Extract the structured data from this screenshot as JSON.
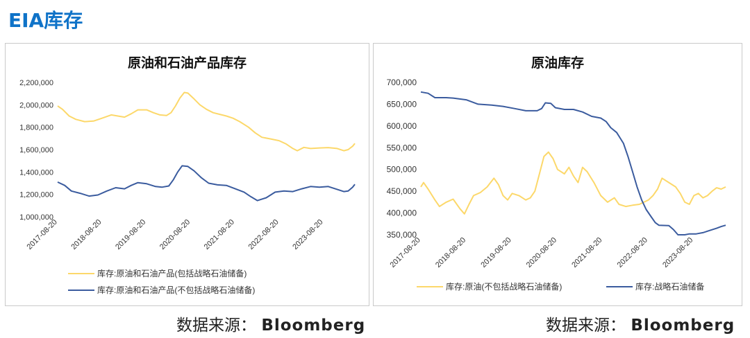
{
  "page": {
    "title": "EIA库存"
  },
  "source": {
    "label": "数据来源：",
    "name": "Bloomberg"
  },
  "chart_data": [
    {
      "type": "line",
      "title": "原油和石油产品库存",
      "ylim": [
        1000000,
        2200000
      ],
      "y_ticks": [
        1000000,
        1200000,
        1400000,
        1600000,
        1800000,
        2000000,
        2200000
      ],
      "y_tick_labels": [
        "1,000,000",
        "1,200,000",
        "1,400,000",
        "1,600,000",
        "1,800,000",
        "2,000,000",
        "2,200,000"
      ],
      "x_ticks": [
        "2017-08-20",
        "2018-08-20",
        "2019-08-20",
        "2020-08-20",
        "2021-08-20",
        "2022-08-20",
        "2023-08-20"
      ],
      "xlim": [
        2017.64,
        2024.35
      ],
      "grid": false,
      "legend_position": "bottom",
      "series": [
        {
          "name": "库存:原油和石油产品(包括战略石油储备)",
          "color": "#FCD86A",
          "points": [
            [
              2017.64,
              1990000
            ],
            [
              2017.75,
              1960000
            ],
            [
              2017.9,
              1900000
            ],
            [
              2018.05,
              1870000
            ],
            [
              2018.25,
              1850000
            ],
            [
              2018.45,
              1855000
            ],
            [
              2018.64,
              1880000
            ],
            [
              2018.85,
              1910000
            ],
            [
              2019.0,
              1900000
            ],
            [
              2019.15,
              1890000
            ],
            [
              2019.3,
              1920000
            ],
            [
              2019.45,
              1955000
            ],
            [
              2019.65,
              1955000
            ],
            [
              2019.8,
              1930000
            ],
            [
              2019.95,
              1910000
            ],
            [
              2020.1,
              1905000
            ],
            [
              2020.2,
              1930000
            ],
            [
              2020.3,
              1990000
            ],
            [
              2020.4,
              2060000
            ],
            [
              2020.5,
              2110000
            ],
            [
              2020.58,
              2105000
            ],
            [
              2020.7,
              2060000
            ],
            [
              2020.85,
              2000000
            ],
            [
              2021.0,
              1960000
            ],
            [
              2021.15,
              1930000
            ],
            [
              2021.3,
              1915000
            ],
            [
              2021.45,
              1900000
            ],
            [
              2021.6,
              1880000
            ],
            [
              2021.75,
              1850000
            ],
            [
              2021.95,
              1800000
            ],
            [
              2022.1,
              1750000
            ],
            [
              2022.25,
              1710000
            ],
            [
              2022.45,
              1695000
            ],
            [
              2022.64,
              1680000
            ],
            [
              2022.8,
              1650000
            ],
            [
              2022.95,
              1610000
            ],
            [
              2023.05,
              1590000
            ],
            [
              2023.2,
              1620000
            ],
            [
              2023.35,
              1610000
            ],
            [
              2023.55,
              1615000
            ],
            [
              2023.75,
              1618000
            ],
            [
              2023.95,
              1610000
            ],
            [
              2024.1,
              1590000
            ],
            [
              2024.2,
              1600000
            ],
            [
              2024.3,
              1630000
            ],
            [
              2024.35,
              1655000
            ]
          ]
        },
        {
          "name": "库存:原油和石油产品(不包括战略石油储备)",
          "color": "#3A5B9E",
          "points": [
            [
              2017.64,
              1310000
            ],
            [
              2017.8,
              1280000
            ],
            [
              2017.95,
              1230000
            ],
            [
              2018.15,
              1210000
            ],
            [
              2018.35,
              1185000
            ],
            [
              2018.55,
              1195000
            ],
            [
              2018.75,
              1230000
            ],
            [
              2018.95,
              1260000
            ],
            [
              2019.15,
              1250000
            ],
            [
              2019.3,
              1280000
            ],
            [
              2019.45,
              1305000
            ],
            [
              2019.65,
              1295000
            ],
            [
              2019.85,
              1270000
            ],
            [
              2020.0,
              1265000
            ],
            [
              2020.15,
              1275000
            ],
            [
              2020.25,
              1330000
            ],
            [
              2020.35,
              1400000
            ],
            [
              2020.45,
              1455000
            ],
            [
              2020.58,
              1450000
            ],
            [
              2020.72,
              1410000
            ],
            [
              2020.88,
              1350000
            ],
            [
              2021.05,
              1300000
            ],
            [
              2021.25,
              1285000
            ],
            [
              2021.45,
              1280000
            ],
            [
              2021.65,
              1250000
            ],
            [
              2021.85,
              1220000
            ],
            [
              2022.0,
              1180000
            ],
            [
              2022.15,
              1145000
            ],
            [
              2022.35,
              1170000
            ],
            [
              2022.55,
              1220000
            ],
            [
              2022.75,
              1230000
            ],
            [
              2022.95,
              1225000
            ],
            [
              2023.15,
              1250000
            ],
            [
              2023.35,
              1270000
            ],
            [
              2023.55,
              1265000
            ],
            [
              2023.75,
              1270000
            ],
            [
              2023.95,
              1245000
            ],
            [
              2024.1,
              1225000
            ],
            [
              2024.2,
              1230000
            ],
            [
              2024.3,
              1265000
            ],
            [
              2024.35,
              1290000
            ]
          ]
        }
      ]
    },
    {
      "type": "line",
      "title": "原油库存",
      "ylim": [
        350000,
        700000
      ],
      "y_ticks": [
        350000,
        400000,
        450000,
        500000,
        550000,
        600000,
        650000,
        700000
      ],
      "y_tick_labels": [
        "350,000",
        "400,000",
        "450,000",
        "500,000",
        "550,000",
        "600,000",
        "650,000",
        "700,000"
      ],
      "x_ticks": [
        "2017-08-20",
        "2018-08-20",
        "2019-08-20",
        "2020-08-20",
        "2021-08-20",
        "2022-08-20",
        "2023-08-20"
      ],
      "xlim": [
        2017.64,
        2024.35
      ],
      "grid": false,
      "legend_position": "bottom",
      "series": [
        {
          "name": "库存:原油(不包括战略石油储备)",
          "color": "#FCD86A",
          "points": [
            [
              2017.64,
              460000
            ],
            [
              2017.7,
              470000
            ],
            [
              2017.8,
              455000
            ],
            [
              2017.95,
              430000
            ],
            [
              2018.05,
              415000
            ],
            [
              2018.2,
              425000
            ],
            [
              2018.35,
              432000
            ],
            [
              2018.5,
              410000
            ],
            [
              2018.6,
              398000
            ],
            [
              2018.7,
              420000
            ],
            [
              2018.8,
              440000
            ],
            [
              2018.95,
              447000
            ],
            [
              2019.1,
              460000
            ],
            [
              2019.25,
              480000
            ],
            [
              2019.35,
              465000
            ],
            [
              2019.45,
              440000
            ],
            [
              2019.55,
              430000
            ],
            [
              2019.65,
              445000
            ],
            [
              2019.8,
              440000
            ],
            [
              2019.95,
              430000
            ],
            [
              2020.05,
              435000
            ],
            [
              2020.15,
              450000
            ],
            [
              2020.25,
              490000
            ],
            [
              2020.35,
              530000
            ],
            [
              2020.45,
              540000
            ],
            [
              2020.55,
              525000
            ],
            [
              2020.65,
              500000
            ],
            [
              2020.8,
              490000
            ],
            [
              2020.9,
              505000
            ],
            [
              2021.0,
              485000
            ],
            [
              2021.1,
              470000
            ],
            [
              2021.2,
              505000
            ],
            [
              2021.3,
              495000
            ],
            [
              2021.45,
              470000
            ],
            [
              2021.6,
              440000
            ],
            [
              2021.75,
              425000
            ],
            [
              2021.9,
              435000
            ],
            [
              2022.0,
              420000
            ],
            [
              2022.15,
              415000
            ],
            [
              2022.3,
              418000
            ],
            [
              2022.45,
              420000
            ],
            [
              2022.55,
              425000
            ],
            [
              2022.65,
              430000
            ],
            [
              2022.75,
              440000
            ],
            [
              2022.85,
              455000
            ],
            [
              2022.95,
              480000
            ],
            [
              2023.1,
              470000
            ],
            [
              2023.25,
              460000
            ],
            [
              2023.35,
              445000
            ],
            [
              2023.45,
              425000
            ],
            [
              2023.55,
              420000
            ],
            [
              2023.65,
              440000
            ],
            [
              2023.75,
              445000
            ],
            [
              2023.85,
              435000
            ],
            [
              2023.95,
              440000
            ],
            [
              2024.05,
              450000
            ],
            [
              2024.15,
              458000
            ],
            [
              2024.25,
              455000
            ],
            [
              2024.35,
              460000
            ]
          ]
        },
        {
          "name": "库存:战略石油储备",
          "color": "#3A5B9E",
          "points": [
            [
              2017.64,
              678000
            ],
            [
              2017.8,
              675000
            ],
            [
              2017.95,
              665000
            ],
            [
              2018.2,
              665000
            ],
            [
              2018.35,
              664000
            ],
            [
              2018.64,
              660000
            ],
            [
              2018.9,
              650000
            ],
            [
              2019.2,
              648000
            ],
            [
              2019.45,
              645000
            ],
            [
              2019.7,
              640000
            ],
            [
              2019.95,
              635000
            ],
            [
              2020.2,
              635000
            ],
            [
              2020.3,
              640000
            ],
            [
              2020.38,
              653000
            ],
            [
              2020.5,
              652000
            ],
            [
              2020.6,
              642000
            ],
            [
              2020.8,
              638000
            ],
            [
              2021.0,
              638000
            ],
            [
              2021.2,
              632000
            ],
            [
              2021.4,
              622000
            ],
            [
              2021.6,
              618000
            ],
            [
              2021.72,
              610000
            ],
            [
              2021.82,
              596000
            ],
            [
              2021.95,
              585000
            ],
            [
              2022.1,
              560000
            ],
            [
              2022.2,
              530000
            ],
            [
              2022.3,
              495000
            ],
            [
              2022.4,
              460000
            ],
            [
              2022.5,
              430000
            ],
            [
              2022.6,
              408000
            ],
            [
              2022.7,
              393000
            ],
            [
              2022.8,
              378000
            ],
            [
              2022.88,
              372000
            ],
            [
              2023.1,
              371000
            ],
            [
              2023.2,
              362000
            ],
            [
              2023.3,
              350000
            ],
            [
              2023.45,
              350000
            ],
            [
              2023.55,
              352000
            ],
            [
              2023.7,
              352000
            ],
            [
              2023.85,
              355000
            ],
            [
              2024.0,
              360000
            ],
            [
              2024.15,
              365000
            ],
            [
              2024.25,
              369000
            ],
            [
              2024.35,
              372000
            ]
          ]
        }
      ]
    }
  ]
}
